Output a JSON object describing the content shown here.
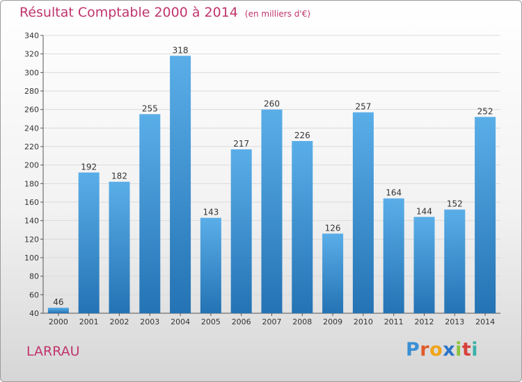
{
  "chart_data": {
    "type": "bar",
    "title": "Résultat Comptable 2000 à 2014",
    "subtitle": "(en milliers d'€)",
    "categories": [
      "2000",
      "2001",
      "2002",
      "2003",
      "2004",
      "2005",
      "2006",
      "2007",
      "2008",
      "2009",
      "2010",
      "2011",
      "2012",
      "2013",
      "2014"
    ],
    "values": [
      46,
      192,
      182,
      255,
      318,
      143,
      217,
      260,
      226,
      126,
      257,
      164,
      144,
      152,
      252
    ],
    "xlabel": "",
    "ylabel": "",
    "ylim": [
      40,
      340
    ],
    "yticks": [
      40,
      60,
      80,
      100,
      120,
      140,
      160,
      180,
      200,
      220,
      240,
      260,
      280,
      300,
      320,
      340
    ],
    "grid": true,
    "bar_color": "#3c92d8"
  },
  "commune": "LARRAU",
  "brand": [
    "P",
    "r",
    "o",
    "x",
    "i",
    "t",
    "i"
  ]
}
